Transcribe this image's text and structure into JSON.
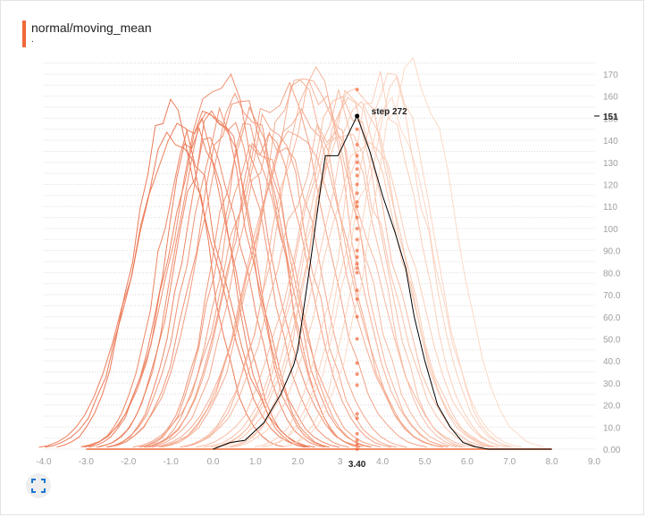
{
  "card": {
    "title": "normal/moving_mean",
    "subtitle": ".",
    "accent_color": "#f0683a"
  },
  "tooltip": {
    "step_label": "step 272",
    "y_value_label": "151",
    "x_value_label": "3.40"
  },
  "fit_button": {
    "icon": "fit-domain-icon"
  },
  "chart_data": {
    "type": "line",
    "title": "normal/moving_mean",
    "x_range": [
      -4.0,
      9.0
    ],
    "y_range": [
      0,
      175
    ],
    "x_ticks": [
      "-4.0",
      "-3.0",
      "-2.0",
      "-1.0",
      "0.0",
      "1.0",
      "2.0",
      "3",
      "4.0",
      "5.0",
      "6.0",
      "7.0",
      "8.0",
      "9.0"
    ],
    "y_ticks": [
      "0.00",
      "10.0",
      "20.0",
      "30.0",
      "40.0",
      "50.0",
      "60.0",
      "70.0",
      "80.0",
      "90.0",
      "100",
      "110",
      "120",
      "130",
      "140",
      "150",
      "160",
      "170"
    ],
    "grid": true,
    "colors": {
      "early_steps": "#e8623a",
      "late_steps": "#fbd3bd",
      "highlight": "#000000"
    },
    "highlighted_series": {
      "step": 272,
      "points": [
        [
          0.0,
          0
        ],
        [
          0.4,
          3
        ],
        [
          0.75,
          4
        ],
        [
          1.2,
          12
        ],
        [
          1.6,
          25
        ],
        [
          1.9,
          38
        ],
        [
          2.0,
          45
        ],
        [
          2.3,
          85
        ],
        [
          2.55,
          120
        ],
        [
          2.65,
          133
        ],
        [
          2.95,
          133
        ],
        [
          3.4,
          151
        ],
        [
          3.7,
          135
        ],
        [
          4.0,
          115
        ],
        [
          4.3,
          98
        ],
        [
          4.55,
          82
        ],
        [
          4.75,
          60
        ],
        [
          5.0,
          40
        ],
        [
          5.3,
          20
        ],
        [
          5.6,
          10
        ],
        [
          5.9,
          3
        ],
        [
          6.2,
          1
        ],
        [
          6.5,
          0
        ],
        [
          8.0,
          0
        ]
      ]
    },
    "family": {
      "description_free": true,
      "count": 40,
      "mean_start": -1.0,
      "mean_end": 4.6,
      "peak_min": 135,
      "peak_max": 175,
      "spread_sigma": 0.95,
      "x_min": -3.0,
      "x_max": 8.0
    },
    "hover_x": 3.4,
    "hover_points_y": [
      0,
      2,
      4,
      7,
      14,
      16,
      29,
      34,
      39,
      50,
      60,
      68,
      72,
      80,
      82,
      84,
      87,
      90,
      95,
      100,
      105,
      110,
      112,
      116,
      120,
      124,
      127,
      130,
      133,
      138,
      145,
      163
    ]
  }
}
